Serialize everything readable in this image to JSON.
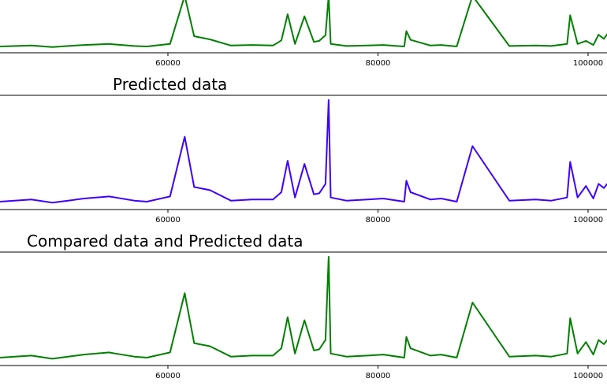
{
  "figure": {
    "panels": [
      {
        "title": "",
        "color": "#007f00"
      },
      {
        "title": "Predicted data",
        "color": "#3c00ff"
      },
      {
        "title": "Compared data and Predicted data",
        "color": "#007f00"
      }
    ]
  },
  "chart_data": [
    {
      "type": "line",
      "title": "",
      "xlabel": "",
      "ylabel": "",
      "xlim": [
        44000,
        103000
      ],
      "ylim": [
        0,
        1.0
      ],
      "xticks": [
        60000,
        80000,
        100000
      ],
      "xtick_labels": [
        "60000",
        "80000",
        "100000"
      ],
      "grid": false,
      "legend": "none",
      "series": [
        {
          "color": "#007f00",
          "x": [
            44000,
            47000,
            49000,
            50500,
            52000,
            54400,
            55000,
            56800,
            58000,
            60200,
            61600,
            62500,
            64000,
            66000,
            68000,
            70000,
            70800,
            71400,
            72100,
            73000,
            73900,
            74400,
            75000,
            75300,
            75500,
            77000,
            79000,
            80500,
            82500,
            82700,
            83100,
            85000,
            86000,
            87500,
            89000,
            92500,
            95000,
            96500,
            98000,
            98300,
            99000,
            99800,
            100500,
            101000,
            101500,
            102000,
            103000
          ],
          "y": [
            0.03,
            0.05,
            0.02,
            0.04,
            0.06,
            0.08,
            0.07,
            0.04,
            0.03,
            0.08,
            1.02,
            0.23,
            0.17,
            0.05,
            0.06,
            0.05,
            0.15,
            0.66,
            0.08,
            0.62,
            0.12,
            0.14,
            0.25,
            1.02,
            0.08,
            0.04,
            0.05,
            0.06,
            0.03,
            0.33,
            0.16,
            0.05,
            0.06,
            0.03,
            1.02,
            0.04,
            0.05,
            0.04,
            0.08,
            0.64,
            0.08,
            0.14,
            0.06,
            0.26,
            0.18,
            0.32,
            0.12
          ]
        }
      ]
    },
    {
      "type": "line",
      "title": "Predicted data",
      "xlabel": "",
      "ylabel": "",
      "xlim": [
        44000,
        103000
      ],
      "ylim": [
        0,
        1.0
      ],
      "xticks": [
        60000,
        80000,
        100000
      ],
      "xtick_labels": [
        "60000",
        "80000",
        "100000"
      ],
      "grid": false,
      "legend": "none",
      "series": [
        {
          "color": "#3c00ff",
          "x": [
            44000,
            47000,
            49000,
            50500,
            52000,
            54400,
            55000,
            56800,
            58000,
            60200,
            61600,
            62500,
            64000,
            66000,
            68000,
            70000,
            70800,
            71400,
            72100,
            73000,
            73900,
            74400,
            75000,
            75300,
            75500,
            77000,
            79000,
            80500,
            82500,
            82700,
            83100,
            85000,
            86000,
            87500,
            89000,
            92500,
            95000,
            96500,
            98000,
            98300,
            99000,
            99800,
            100500,
            101000,
            101500,
            102000,
            103000
          ],
          "y": [
            0.03,
            0.05,
            0.02,
            0.04,
            0.06,
            0.08,
            0.07,
            0.04,
            0.03,
            0.08,
            0.65,
            0.17,
            0.14,
            0.04,
            0.05,
            0.05,
            0.12,
            0.42,
            0.07,
            0.39,
            0.1,
            0.11,
            0.2,
            1.0,
            0.07,
            0.04,
            0.05,
            0.06,
            0.03,
            0.23,
            0.12,
            0.05,
            0.06,
            0.03,
            0.56,
            0.04,
            0.05,
            0.04,
            0.07,
            0.41,
            0.07,
            0.18,
            0.06,
            0.2,
            0.16,
            0.22,
            0.1
          ]
        }
      ]
    },
    {
      "type": "line",
      "title": "Compared data and Predicted data",
      "xlabel": "",
      "ylabel": "",
      "xlim": [
        44000,
        103000
      ],
      "ylim": [
        0,
        1.0
      ],
      "xticks": [
        60000,
        80000,
        100000
      ],
      "xtick_labels": [
        "60000",
        "80000",
        "100000"
      ],
      "grid": false,
      "legend": "none",
      "series": [
        {
          "color": "#007f00",
          "x": [
            44000,
            47000,
            49000,
            50500,
            52000,
            54400,
            55000,
            56800,
            58000,
            60200,
            61600,
            62500,
            64000,
            66000,
            68000,
            70000,
            70800,
            71400,
            72100,
            73000,
            73900,
            74400,
            75000,
            75300,
            75500,
            77000,
            79000,
            80500,
            82500,
            82700,
            83100,
            85000,
            86000,
            87500,
            89000,
            92500,
            95000,
            96500,
            98000,
            98300,
            99000,
            99800,
            100500,
            101000,
            101500,
            102000,
            103000
          ],
          "y": [
            0.03,
            0.05,
            0.02,
            0.04,
            0.06,
            0.08,
            0.07,
            0.04,
            0.03,
            0.08,
            0.65,
            0.17,
            0.14,
            0.04,
            0.05,
            0.05,
            0.12,
            0.42,
            0.07,
            0.39,
            0.1,
            0.11,
            0.2,
            1.0,
            0.07,
            0.04,
            0.05,
            0.06,
            0.03,
            0.23,
            0.12,
            0.05,
            0.06,
            0.03,
            0.56,
            0.04,
            0.05,
            0.04,
            0.07,
            0.41,
            0.07,
            0.18,
            0.06,
            0.2,
            0.16,
            0.22,
            0.1
          ]
        }
      ]
    }
  ]
}
